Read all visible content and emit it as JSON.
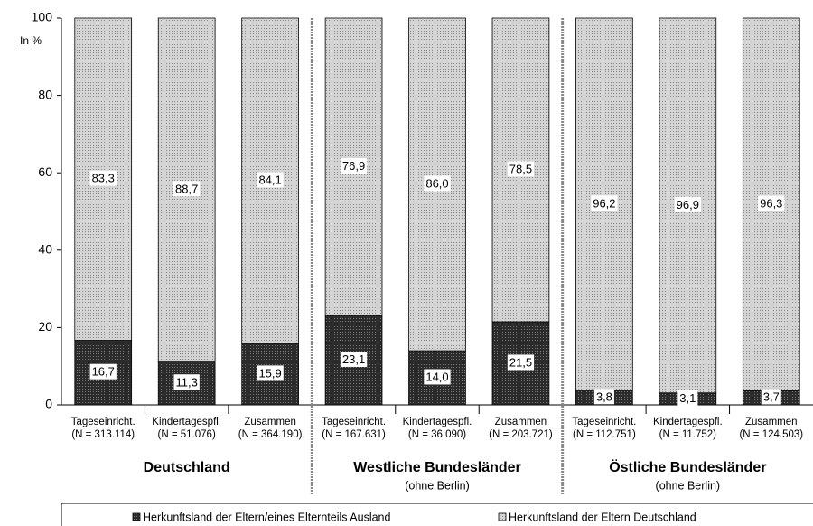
{
  "chart_data": {
    "type": "stacked_bar",
    "ylabel": "In %",
    "categories": [
      [
        "Tageseinricht.",
        "(N = 313.114)"
      ],
      [
        "Kindertagespfl.",
        "(N = 51.076)"
      ],
      [
        "Zusammen",
        "(N = 364.190)"
      ],
      [
        "Tageseinricht.",
        "(N = 167.631)"
      ],
      [
        "Kindertagespfl.",
        "(N = 36.090)"
      ],
      [
        "Zusammen",
        "(N = 203.721)"
      ],
      [
        "Tageseinricht.",
        "(N = 112.751)"
      ],
      [
        "Kindertagespfl.",
        "(N = 11.752)"
      ],
      [
        "Zusammen",
        "(N = 124.503)"
      ]
    ],
    "groups": [
      {
        "label": "Deutschland"
      },
      {
        "label": "Westliche Bundesländer",
        "sublabel": "(ohne Berlin)"
      },
      {
        "label": "Östliche Bundesländer",
        "sublabel": "(ohne Berlin)"
      }
    ],
    "series": [
      {
        "name": "Herkunftsland der Eltern/eines Elternteils Ausland",
        "color": "#2b2b2b",
        "values": [
          16.7,
          11.3,
          15.9,
          23.1,
          14.0,
          21.5,
          3.8,
          3.1,
          3.7
        ],
        "value_labels": [
          "16,7",
          "11,3",
          "15,9",
          "23,1",
          "14,0",
          "21,5",
          "3,8",
          "3,1",
          "3,7"
        ]
      },
      {
        "name": "Herkunftsland der Eltern Deutschland",
        "color": "#d4d4d4",
        "values": [
          83.3,
          88.7,
          84.1,
          76.9,
          86.0,
          78.5,
          96.2,
          96.9,
          96.3
        ],
        "value_labels": [
          "83,3",
          "88,7",
          "84,1",
          "76,9",
          "86,0",
          "78,5",
          "96,2",
          "96,9",
          "96,3"
        ]
      }
    ],
    "ylim": [
      0,
      100
    ],
    "yticks": [
      0,
      20,
      40,
      60,
      80,
      100
    ]
  }
}
